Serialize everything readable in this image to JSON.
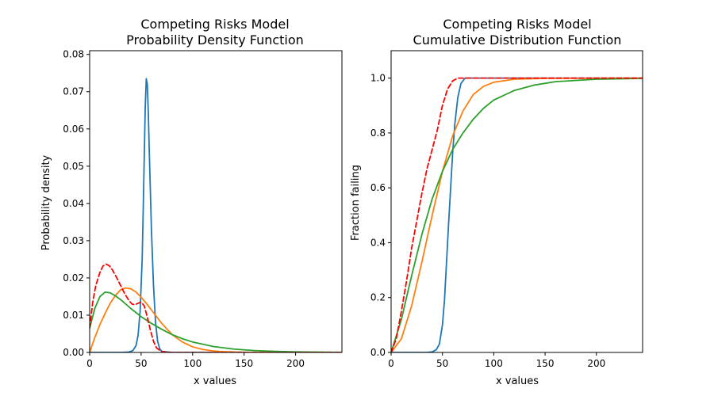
{
  "chart_data": [
    {
      "type": "line",
      "title_line1": "Competing Risks Model",
      "title_line2": "Probability Density Function",
      "xlabel": "x values",
      "ylabel": "Probability density",
      "xlim": [
        0,
        245
      ],
      "ylim": [
        0,
        0.081
      ],
      "xticks": [
        "0",
        "50",
        "100",
        "150",
        "200"
      ],
      "yticks": [
        "0.00",
        "0.01",
        "0.02",
        "0.03",
        "0.04",
        "0.05",
        "0.06",
        "0.07",
        "0.08"
      ],
      "series": [
        {
          "color": "#1f77b4",
          "dashed": false,
          "x": [
            0,
            30,
            38,
            42,
            45,
            47,
            49,
            51,
            52,
            53,
            54,
            55,
            56,
            57,
            58,
            60,
            62,
            64,
            66,
            68,
            70,
            80,
            245
          ],
          "y": [
            0,
            0,
            0.0001,
            0.0005,
            0.0018,
            0.0045,
            0.011,
            0.025,
            0.038,
            0.052,
            0.066,
            0.0735,
            0.072,
            0.064,
            0.053,
            0.033,
            0.018,
            0.008,
            0.003,
            0.001,
            0.0003,
            0,
            0
          ]
        },
        {
          "color": "#ff7f0e",
          "dashed": false,
          "x": [
            0,
            5,
            10,
            15,
            20,
            25,
            30,
            35,
            40,
            45,
            50,
            55,
            60,
            70,
            80,
            90,
            100,
            110,
            120,
            130,
            150,
            245
          ],
          "y": [
            0,
            0.004,
            0.0075,
            0.0105,
            0.0132,
            0.0153,
            0.0168,
            0.0173,
            0.0171,
            0.0162,
            0.0148,
            0.0132,
            0.0114,
            0.0078,
            0.0048,
            0.0028,
            0.0015,
            0.0008,
            0.0004,
            0.0002,
            5e-05,
            0
          ]
        },
        {
          "color": "#2ca02c",
          "dashed": false,
          "x": [
            0,
            5,
            10,
            15,
            20,
            25,
            30,
            40,
            50,
            60,
            70,
            80,
            90,
            100,
            120,
            140,
            160,
            180,
            200,
            245
          ],
          "y": [
            0.0065,
            0.0118,
            0.015,
            0.0162,
            0.016,
            0.0152,
            0.0142,
            0.0118,
            0.0096,
            0.0078,
            0.0062,
            0.0048,
            0.0037,
            0.0028,
            0.0016,
            0.0009,
            0.0005,
            0.0003,
            0.00015,
            2e-05
          ]
        },
        {
          "color": "#ff0000",
          "dashed": true,
          "x": [
            0,
            3,
            6,
            10,
            13,
            16,
            19,
            22,
            26,
            30,
            34,
            38,
            41,
            44,
            47,
            50,
            53,
            56,
            59,
            62,
            65,
            70,
            80,
            245
          ],
          "y": [
            0.0065,
            0.0135,
            0.018,
            0.0215,
            0.0232,
            0.0237,
            0.0233,
            0.0222,
            0.0202,
            0.018,
            0.0158,
            0.014,
            0.013,
            0.0128,
            0.0132,
            0.0135,
            0.0125,
            0.0095,
            0.006,
            0.003,
            0.0012,
            0.0002,
            0,
            0
          ]
        }
      ]
    },
    {
      "type": "line",
      "title_line1": "Competing Risks Model",
      "title_line2": "Cumulative Distribution Function",
      "xlabel": "x values",
      "ylabel": "Fraction failing",
      "xlim": [
        0,
        245
      ],
      "ylim": [
        0,
        1.1
      ],
      "xticks": [
        "0",
        "50",
        "100",
        "150",
        "200"
      ],
      "yticks": [
        "0.0",
        "0.2",
        "0.4",
        "0.6",
        "0.8",
        "1.0"
      ],
      "series": [
        {
          "color": "#1f77b4",
          "dashed": false,
          "x": [
            0,
            35,
            40,
            44,
            47,
            50,
            52,
            54,
            56,
            58,
            60,
            62,
            65,
            68,
            72,
            245
          ],
          "y": [
            0,
            0,
            0.002,
            0.01,
            0.03,
            0.1,
            0.19,
            0.33,
            0.47,
            0.6,
            0.73,
            0.83,
            0.93,
            0.98,
            1.0,
            1.0
          ]
        },
        {
          "color": "#ff7f0e",
          "dashed": false,
          "x": [
            0,
            10,
            20,
            30,
            40,
            50,
            60,
            70,
            80,
            90,
            100,
            120,
            150,
            245
          ],
          "y": [
            0,
            0.05,
            0.17,
            0.33,
            0.5,
            0.66,
            0.79,
            0.88,
            0.94,
            0.97,
            0.985,
            0.996,
            0.999,
            1.0
          ]
        },
        {
          "color": "#2ca02c",
          "dashed": false,
          "x": [
            0,
            10,
            20,
            30,
            40,
            50,
            60,
            70,
            80,
            90,
            100,
            120,
            140,
            160,
            200,
            245
          ],
          "y": [
            0,
            0.12,
            0.28,
            0.43,
            0.56,
            0.66,
            0.74,
            0.8,
            0.85,
            0.89,
            0.92,
            0.955,
            0.975,
            0.987,
            0.996,
            0.999
          ]
        },
        {
          "color": "#ff0000",
          "dashed": true,
          "x": [
            0,
            5,
            10,
            15,
            20,
            25,
            30,
            35,
            40,
            45,
            50,
            55,
            60,
            65,
            70,
            80,
            245
          ],
          "y": [
            0,
            0.05,
            0.15,
            0.26,
            0.38,
            0.48,
            0.58,
            0.67,
            0.74,
            0.81,
            0.9,
            0.96,
            0.99,
            1.0,
            1.0,
            1.0,
            1.0
          ]
        }
      ]
    }
  ]
}
